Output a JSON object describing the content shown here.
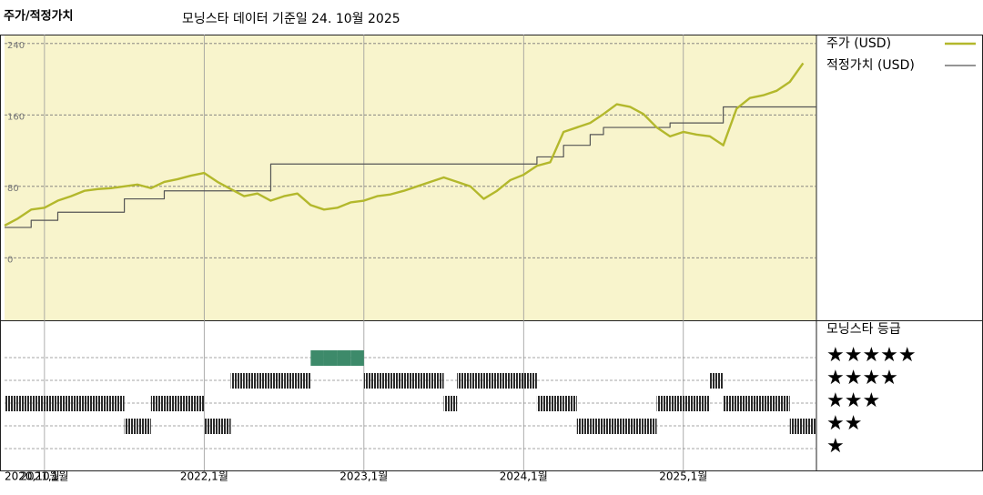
{
  "chart_data": {
    "type": "line",
    "title": "주가/적정가치",
    "subtitle": "모닝스타 데이터 기준일 24. 10월 2025",
    "x": [
      "2020-10",
      "2020-11",
      "2020-12",
      "2021-01",
      "2021-02",
      "2021-03",
      "2021-04",
      "2021-05",
      "2021-06",
      "2021-07",
      "2021-08",
      "2021-09",
      "2021-10",
      "2021-11",
      "2021-12",
      "2022-01",
      "2022-02",
      "2022-03",
      "2022-04",
      "2022-05",
      "2022-06",
      "2022-07",
      "2022-08",
      "2022-09",
      "2022-10",
      "2022-11",
      "2022-12",
      "2023-01",
      "2023-02",
      "2023-03",
      "2023-04",
      "2023-05",
      "2023-06",
      "2023-07",
      "2023-08",
      "2023-09",
      "2023-10",
      "2023-11",
      "2023-12",
      "2024-01",
      "2024-02",
      "2024-03",
      "2024-04",
      "2024-05",
      "2024-06",
      "2024-07",
      "2024-08",
      "2024-09",
      "2024-10",
      "2024-11",
      "2024-12",
      "2025-01",
      "2025-02",
      "2025-03",
      "2025-04",
      "2025-05",
      "2025-06",
      "2025-07",
      "2025-08",
      "2025-09",
      "2025-10"
    ],
    "series": [
      {
        "name": "주가 (USD)",
        "color": "#b3b82c",
        "step": false,
        "values": [
          36,
          44,
          54,
          56,
          64,
          69,
          75,
          77,
          78,
          80,
          82,
          78,
          85,
          88,
          92,
          95,
          85,
          77,
          69,
          72,
          64,
          69,
          72,
          59,
          54,
          56,
          62,
          64,
          69,
          71,
          75,
          80,
          85,
          90,
          85,
          80,
          66,
          75,
          87,
          93,
          103,
          107,
          141,
          146,
          151,
          161,
          172,
          169,
          161,
          146,
          136,
          141,
          138,
          136,
          126,
          167,
          179,
          182,
          187,
          197,
          218
        ]
      },
      {
        "name": "적정가치 (USD)",
        "color": "#555555",
        "step": true,
        "values": [
          34,
          34,
          42,
          42,
          51,
          51,
          51,
          51,
          51,
          66,
          66,
          66,
          75,
          75,
          75,
          75,
          75,
          75,
          75,
          75,
          105,
          105,
          105,
          105,
          105,
          105,
          105,
          105,
          105,
          105,
          105,
          105,
          105,
          105,
          105,
          105,
          105,
          105,
          105,
          105,
          113,
          113,
          126,
          126,
          138,
          146,
          146,
          146,
          146,
          146,
          151,
          151,
          151,
          151,
          169,
          169,
          169,
          169,
          169,
          169,
          169
        ]
      }
    ],
    "xlim": [
      "2020-10",
      "2025-11"
    ],
    "xticks": [
      {
        "value": "2020-10",
        "label": "2020,10월"
      },
      {
        "value": "2021-01",
        "label": "2021,1월"
      },
      {
        "value": "2022-01",
        "label": "2022,1월"
      },
      {
        "value": "2023-01",
        "label": "2023,1월"
      },
      {
        "value": "2024-01",
        "label": "2024,1월"
      },
      {
        "value": "2025-01",
        "label": "2025,1월"
      }
    ],
    "ylim": [
      -70,
      250
    ],
    "yticks": [
      0,
      80,
      160,
      240
    ],
    "grid": true,
    "rating": {
      "title": "모닝스타 등급",
      "levels": [
        {
          "value": 5,
          "label": "★★★★★"
        },
        {
          "value": 4,
          "label": "★★★★"
        },
        {
          "value": 3,
          "label": "★★★"
        },
        {
          "value": 2,
          "label": "★★"
        },
        {
          "value": 1,
          "label": "★"
        }
      ],
      "color": "#2a2a2a",
      "top_color": "#3d8a6a",
      "values": [
        3,
        3,
        3,
        3,
        3,
        3,
        3,
        3,
        3,
        2,
        2,
        3,
        3,
        3,
        3,
        2,
        2,
        4,
        4,
        4,
        4,
        4,
        4,
        5,
        5,
        5,
        5,
        4,
        4,
        4,
        4,
        4,
        4,
        3,
        4,
        4,
        4,
        4,
        4,
        4,
        3,
        3,
        3,
        2,
        2,
        2,
        2,
        2,
        2,
        3,
        3,
        3,
        3,
        4,
        3,
        3,
        3,
        3,
        3,
        2,
        2
      ]
    }
  }
}
